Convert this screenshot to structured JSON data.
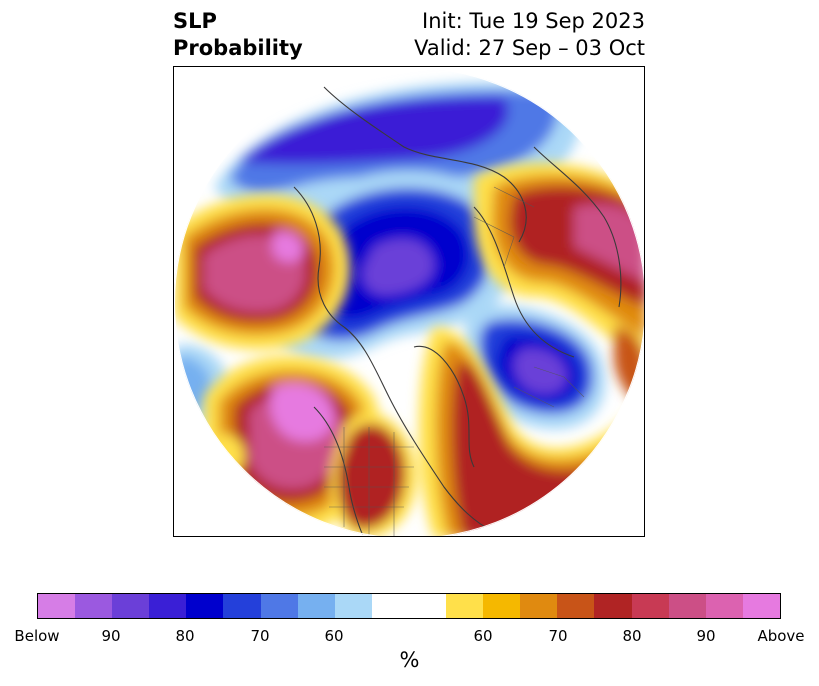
{
  "header": {
    "title_line1": "SLP",
    "title_line2": "Probability",
    "init": "Init: Tue 19 Sep 2023",
    "valid": "Valid: 27 Sep – 03 Oct"
  },
  "map": {
    "projection": "north-polar-stereographic",
    "colors": {
      "below_100": "#d67de6",
      "below_90": "#9b59e0",
      "below_85": "#6b3fd8",
      "below_80": "#3a1fd6",
      "below_75": "#0000cd",
      "below_70": "#2440da",
      "below_65": "#4f78e6",
      "below_60": "#76b0f0",
      "below_55": "#aad8f7",
      "neutral": "#ffffff",
      "above_55": "#ffe04a",
      "above_60": "#f5b800",
      "above_65": "#e08a10",
      "above_70": "#c85418",
      "above_75": "#b02424",
      "above_80": "#c83a54",
      "above_85": "#cc4f86",
      "above_90": "#dc62b0",
      "above_100": "#e67ae0",
      "coastline": "#3a3a3a"
    }
  },
  "colorbar": {
    "segments": [
      "#d67de6",
      "#9b59e0",
      "#6b3fd8",
      "#3a1fd6",
      "#0000cd",
      "#2440da",
      "#4f78e6",
      "#76b0f0",
      "#aad8f7",
      "#ffffff",
      "#ffe04a",
      "#f5b800",
      "#e08a10",
      "#c85418",
      "#b02424",
      "#c83a54",
      "#cc4f86",
      "#dc62b0",
      "#e67ae0"
    ],
    "tick_labels": [
      "Below",
      "90",
      "80",
      "70",
      "60",
      "60",
      "70",
      "80",
      "90",
      "Above"
    ],
    "unit_label": "%"
  }
}
